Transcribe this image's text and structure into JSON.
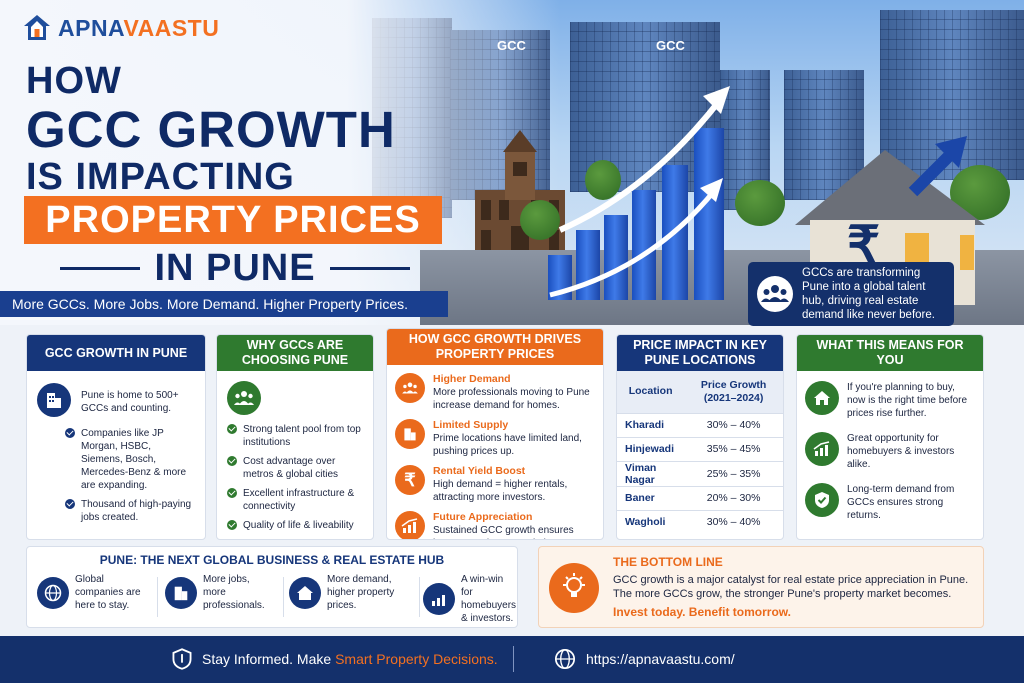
{
  "brand": {
    "apna": "APNA",
    "vaastu": "VAASTU"
  },
  "headline": {
    "line1": "HOW",
    "line2": "GCC GROWTH",
    "line3": "IS IMPACTING",
    "line4": "PROPERTY PRICES",
    "line5": "IN PUNE"
  },
  "tagline": "More GCCs. More Jobs. More Demand. Higher Property Prices.",
  "hero": {
    "sign1": "GCC",
    "sign2": "GCC",
    "rupee": "₹",
    "callout": "GCCs are transforming Pune into a global talent hub, driving real estate demand like never before."
  },
  "growth_card": {
    "title": "GCC GROWTH IN PUNE",
    "intro": "Pune is home to 500+ GCCs and counting.",
    "bullets": [
      "Companies like JP Morgan, HSBC, Siemens, Bosch, Mercedes-Benz & more are expanding.",
      "Thousand of high-paying jobs created."
    ]
  },
  "why_card": {
    "title": "WHY GCCs ARE CHOOSING PUNE",
    "bullets": [
      "Strong talent pool from top institutions",
      "Cost advantage over metros & global cities",
      "Excellent infrastructure & connectivity",
      "Quality of life & liveability"
    ]
  },
  "drives_card": {
    "title": "HOW GCC GROWTH DRIVES PROPERTY PRICES",
    "items": [
      {
        "title": "Higher Demand",
        "text": "More professionals moving to Pune increase demand for homes."
      },
      {
        "title": "Limited Supply",
        "text": "Prime locations have limited land, pushing prices up."
      },
      {
        "title": "Rental Yield Boost",
        "text": "High demand = higher rentals, attracting more investors."
      },
      {
        "title": "Future Appreciation",
        "text": "Sustained GCC growth ensures long-term price appreciation."
      }
    ]
  },
  "price_card": {
    "title": "PRICE IMPACT IN KEY PUNE LOCATIONS",
    "col_location": "Location",
    "col_growth": "Price Growth (2021–2024)",
    "rows": [
      {
        "location": "Kharadi",
        "growth": "30% – 40%"
      },
      {
        "location": "Hinjewadi",
        "growth": "35% – 45%"
      },
      {
        "location": "Viman Nagar",
        "growth": "25% – 35%"
      },
      {
        "location": "Baner",
        "growth": "20% – 30%"
      },
      {
        "location": "Wagholi",
        "growth": "30% – 40%"
      }
    ]
  },
  "means_card": {
    "title": "WHAT THIS MEANS FOR YOU",
    "items": [
      "If you're planning to buy, now is the right time before prices rise further.",
      "Great opportunity for homebuyers & investors alike.",
      "Long-term demand from GCCs ensures strong returns."
    ]
  },
  "hub": {
    "title": "PUNE: THE NEXT GLOBAL BUSINESS & REAL ESTATE HUB",
    "items": [
      "Global companies are here to stay.",
      "More jobs, more professionals.",
      "More demand, higher property prices.",
      "A win-win for homebuyers & investors."
    ]
  },
  "bottom_line": {
    "title": "THE BOTTOM LINE",
    "text": "GCC growth is a major catalyst for real estate price appreciation in Pune. The more GCCs grow, the stronger Pune's property market becomes.",
    "cta": "Invest today. Benefit tomorrow."
  },
  "footer": {
    "text_before": "Stay Informed. Make ",
    "text_highlight": "Smart Property Decisions.",
    "url": "https://apnavaastu.com/"
  },
  "colors": {
    "navy": "#16367a",
    "orange": "#ea6a1c",
    "green": "#2f7a2f"
  }
}
